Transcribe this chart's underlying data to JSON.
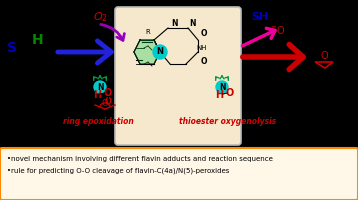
{
  "bg_color": "#000000",
  "text_bullet1": "novel mechanism involving different flavin adducts and reaction sequence",
  "text_bullet2": "rule for predicting O-O cleavage of flavin-C(4a)/N(5)-peroxides",
  "bottom_box_color": "#ff8800",
  "bottom_box_bg": "#fff8e8",
  "label_ring": "ring epoxidation",
  "label_thioester": "thioester oxygenolysis",
  "label_color": "#cc0000",
  "s_color": "#0000bb",
  "h_color": "#008800",
  "o2_color": "#cc0000",
  "sh_color": "#0000bb",
  "arrow_purple": "#9900bb",
  "arrow_blue": "#2222dd",
  "arrow_pink": "#ee0099",
  "arrow_red": "#cc0000",
  "cyan_color": "#00cccc",
  "green_color": "#009944",
  "flavin_box_bg": "#f5e8cc",
  "flavin_box_border": "#bbbbbb"
}
